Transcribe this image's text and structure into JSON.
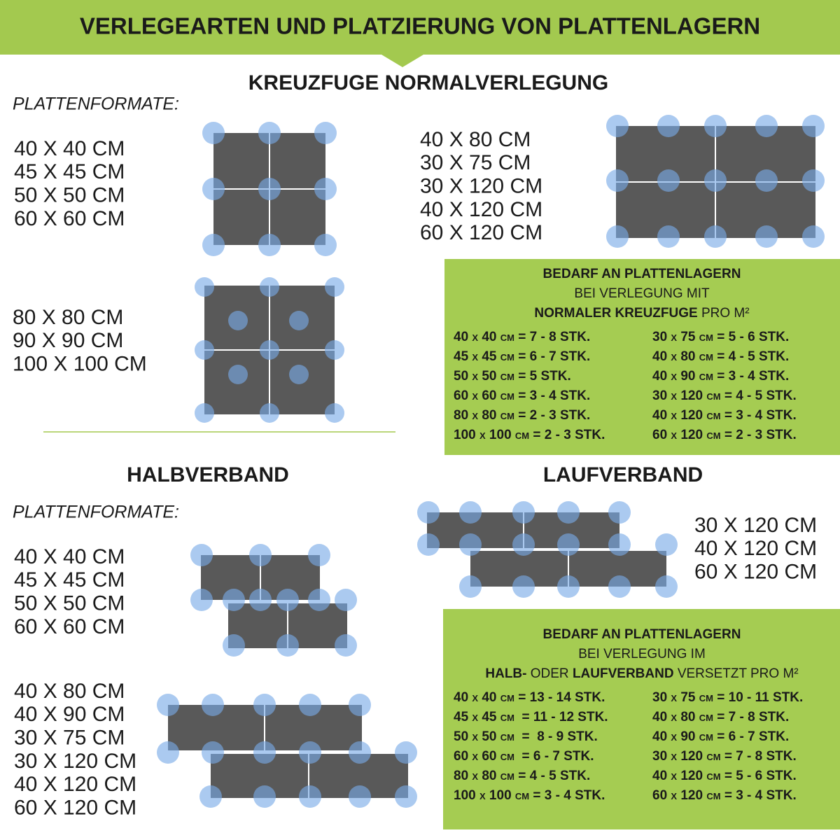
{
  "title": "VERLEGEARTEN UND PLATZIERUNG VON PLATTENLAGERN",
  "kreuzfuge": {
    "heading": "KREUZFUGE NORMALVERLEGUNG",
    "label": "PLATTENFORMATE:",
    "groups": [
      [
        "40 X 40 CM",
        "45 X 45 CM",
        "50 X 50 CM",
        "60 X 60 CM"
      ],
      [
        "40 X 80 CM",
        "30 X 75 CM",
        "30 X 120 CM",
        "40 X 120 CM",
        "60 X 120 CM"
      ],
      [
        "80 X 80 CM",
        "90 X 90 CM",
        "100 X 100 CM"
      ]
    ],
    "box": {
      "line1": "BEDARF AN PLATTENLAGERN",
      "line2": "BEI VERLEGUNG MIT",
      "line3": [
        "NORMALER KREUZFUGE",
        " PRO M²"
      ],
      "left": [
        "40 x 40 cm = 7 - 8 STK.",
        "45 x 45 cm = 6 - 7 STK.",
        "50 x 50 cm = 5 STK.",
        "60 x 60 cm = 3 - 4 STK.",
        "80 x 80 cm = 2 - 3 STK.",
        "100 x 100 cm = 2 - 3 STK."
      ],
      "right": [
        "30 x 75 cm = 5 - 6 STK.",
        "40 x 80 cm = 4 - 5 STK.",
        "40 x 90 cm = 3 - 4 STK.",
        "30 x 120 cm = 4 - 5 STK.",
        "40 x 120 cm = 3 - 4 STK.",
        "60 x 120 cm = 2 - 3 STK."
      ]
    }
  },
  "halbverband": {
    "heading": "HALBVERBAND",
    "label": "PLATTENFORMATE:",
    "groups": [
      [
        "40 X 40 CM",
        "45 X 45 CM",
        "50 X 50 CM",
        "60 X 60 CM"
      ],
      [
        "40 X 80 CM",
        "40 X 90 CM",
        "30 X 75 CM",
        "30 X 120 CM",
        "40 X 120 CM",
        "60 X 120 CM"
      ]
    ]
  },
  "laufverband": {
    "heading": "LAUFVERBAND",
    "groups": [
      [
        "30 X 120 CM",
        "40 X 120 CM",
        "60 X 120 CM"
      ]
    ],
    "box": {
      "line1": "BEDARF AN PLATTENLAGERN",
      "line2": "BEI VERLEGUNG IM",
      "line3": [
        "HALB-",
        " ODER ",
        "LAUFVERBAND",
        " VERSETZT PRO M²"
      ],
      "left": [
        "40 x 40 cm = 13 - 14 STK.",
        "45 x 45 cm  = 11 - 12 STK.",
        "50 x 50 cm  =  8 - 9 STK.",
        "60 x 60 cm  = 6 - 7 STK.",
        "80 x 80 cm = 4 - 5 STK.",
        "100 x 100 cm = 3 - 4 STK."
      ],
      "right": [
        "30 x 75 cm = 10 - 11 STK.",
        "40 x 80 cm = 7 - 8 STK.",
        "40 x 90 cm = 6 - 7 STK.",
        "30 x 120 cm = 7 - 8 STK.",
        "40 x 120 cm = 5 - 6 STK.",
        "60 x 120 cm = 3 - 4 STK."
      ]
    }
  }
}
